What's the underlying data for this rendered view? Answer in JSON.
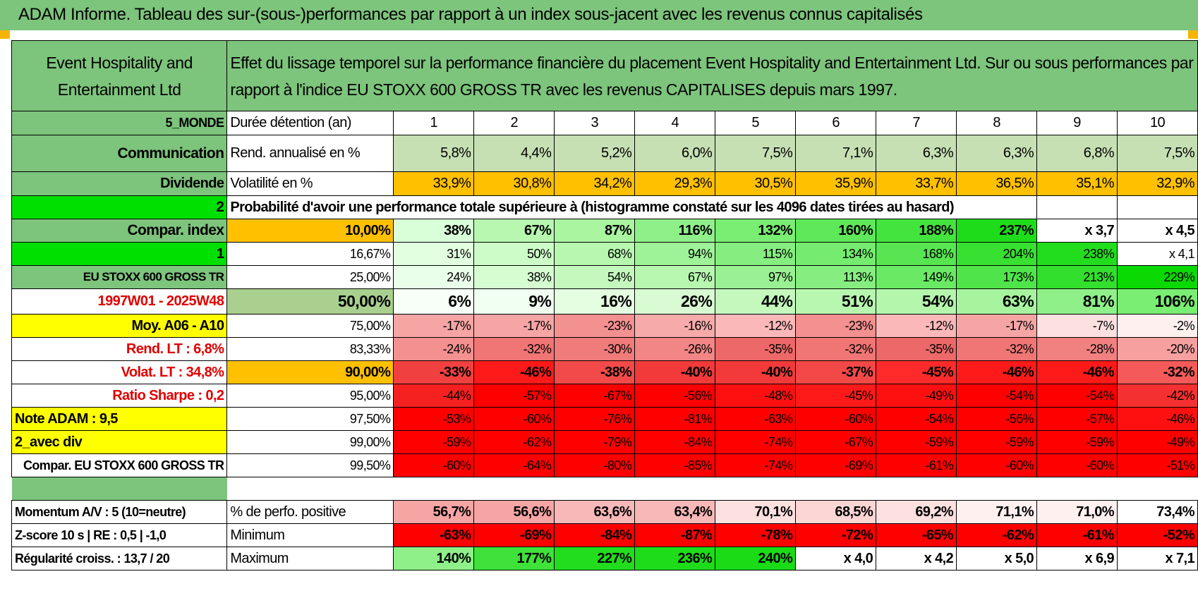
{
  "title": "ADAM Informe. Tableau des sur-(sous-)performances par rapport à un index sous-jacent avec les revenus connus capitalisés",
  "colors": {
    "header_green": "#7dc47c",
    "light_green": "#c6e0b4",
    "orange": "#ffc000",
    "bright_green": "#00e000",
    "yellow": "#ffff00",
    "red": "#ff0000"
  },
  "header": {
    "company": "Event Hospitality and Entertainment Ltd",
    "description": "Effet du lissage temporel sur la performance financière du placement Event Hospitality and Entertainment Ltd. Sur ou sous performances par rapport à l'indice EU STOXX 600 GROSS TR avec les revenus CAPITALISES depuis mars 1997."
  },
  "left_labels": [
    "5_MONDE",
    "Communication",
    "Dividende",
    "2",
    "Compar. index",
    "1",
    "EU STOXX 600 GROSS TR",
    "1997W01 - 2025W48",
    "Moy. A06 - A10",
    "Rend. LT :    6,8%",
    "Volat. LT :    34,8%",
    "Ratio Sharpe :     0,2",
    "Note ADAM : 9,5",
    "2_avec div",
    "Compar. EU STOXX 600 GROSS TR"
  ],
  "rows": {
    "years": {
      "label": "Durée détention (an)",
      "values": [
        "1",
        "2",
        "3",
        "4",
        "5",
        "6",
        "7",
        "8",
        "9",
        "10"
      ]
    },
    "rend": {
      "label": "Rend. annualisé en %",
      "values": [
        "5,8%",
        "4,4%",
        "5,2%",
        "6,0%",
        "7,5%",
        "7,1%",
        "6,3%",
        "6,3%",
        "6,8%",
        "7,5%"
      ]
    },
    "vol": {
      "label": "Volatilité en %",
      "values": [
        "33,9%",
        "30,8%",
        "34,2%",
        "29,3%",
        "30,5%",
        "35,9%",
        "33,7%",
        "36,5%",
        "35,1%",
        "32,9%"
      ]
    },
    "prob_title": "Probabilité d'avoir une performance totale supérieure à (histogramme constaté sur les 4096 dates tirées au hasard)",
    "quantiles": [
      {
        "p": "10,00%",
        "values": [
          "38%",
          "67%",
          "87%",
          "116%",
          "132%",
          "160%",
          "188%",
          "237%",
          "x 3,7",
          "x 4,5"
        ]
      },
      {
        "p": "16,67%",
        "values": [
          "31%",
          "50%",
          "68%",
          "94%",
          "115%",
          "134%",
          "168%",
          "204%",
          "238%",
          "x 4,1"
        ]
      },
      {
        "p": "25,00%",
        "values": [
          "24%",
          "38%",
          "54%",
          "67%",
          "97%",
          "113%",
          "149%",
          "173%",
          "213%",
          "229%"
        ]
      },
      {
        "p": "50,00%",
        "values": [
          "6%",
          "9%",
          "16%",
          "26%",
          "44%",
          "51%",
          "54%",
          "63%",
          "81%",
          "106%"
        ]
      },
      {
        "p": "75,00%",
        "values": [
          "-17%",
          "-17%",
          "-23%",
          "-16%",
          "-12%",
          "-23%",
          "-12%",
          "-17%",
          "-7%",
          "-2%"
        ]
      },
      {
        "p": "83,33%",
        "values": [
          "-24%",
          "-32%",
          "-30%",
          "-26%",
          "-35%",
          "-32%",
          "-35%",
          "-32%",
          "-28%",
          "-20%"
        ]
      },
      {
        "p": "90,00%",
        "values": [
          "-33%",
          "-46%",
          "-38%",
          "-40%",
          "-40%",
          "-37%",
          "-45%",
          "-46%",
          "-46%",
          "-32%"
        ]
      },
      {
        "p": "95,00%",
        "values": [
          "-44%",
          "-57%",
          "-67%",
          "-56%",
          "-48%",
          "-45%",
          "-49%",
          "-54%",
          "-54%",
          "-42%"
        ]
      },
      {
        "p": "97,50%",
        "values": [
          "-53%",
          "-60%",
          "-76%",
          "-81%",
          "-63%",
          "-60%",
          "-54%",
          "-56%",
          "-57%",
          "-46%"
        ]
      },
      {
        "p": "99,00%",
        "values": [
          "-59%",
          "-62%",
          "-79%",
          "-84%",
          "-74%",
          "-67%",
          "-59%",
          "-59%",
          "-59%",
          "-49%"
        ]
      },
      {
        "p": "99,50%",
        "values": [
          "-60%",
          "-64%",
          "-80%",
          "-85%",
          "-74%",
          "-69%",
          "-61%",
          "-60%",
          "-60%",
          "-51%"
        ]
      }
    ],
    "bottom": [
      {
        "left": "Momentum A/V : 5 (10=neutre)",
        "label": "% de perfo. positive",
        "values": [
          "56,7%",
          "56,6%",
          "63,6%",
          "63,4%",
          "70,1%",
          "68,5%",
          "69,2%",
          "71,1%",
          "71,0%",
          "73,4%"
        ]
      },
      {
        "left": "Z-score 10 s | RE : 0,5 | -1,0",
        "label": "Minimum",
        "values": [
          "-63%",
          "-69%",
          "-84%",
          "-87%",
          "-78%",
          "-72%",
          "-65%",
          "-62%",
          "-61%",
          "-52%"
        ]
      },
      {
        "left": "Régularité croiss. : 13,7 / 20",
        "label": "Maximum",
        "values": [
          "140%",
          "177%",
          "227%",
          "236%",
          "240%",
          "x 4,0",
          "x 4,2",
          "x 5,0",
          "x 6,9",
          "x 7,1"
        ]
      }
    ]
  }
}
